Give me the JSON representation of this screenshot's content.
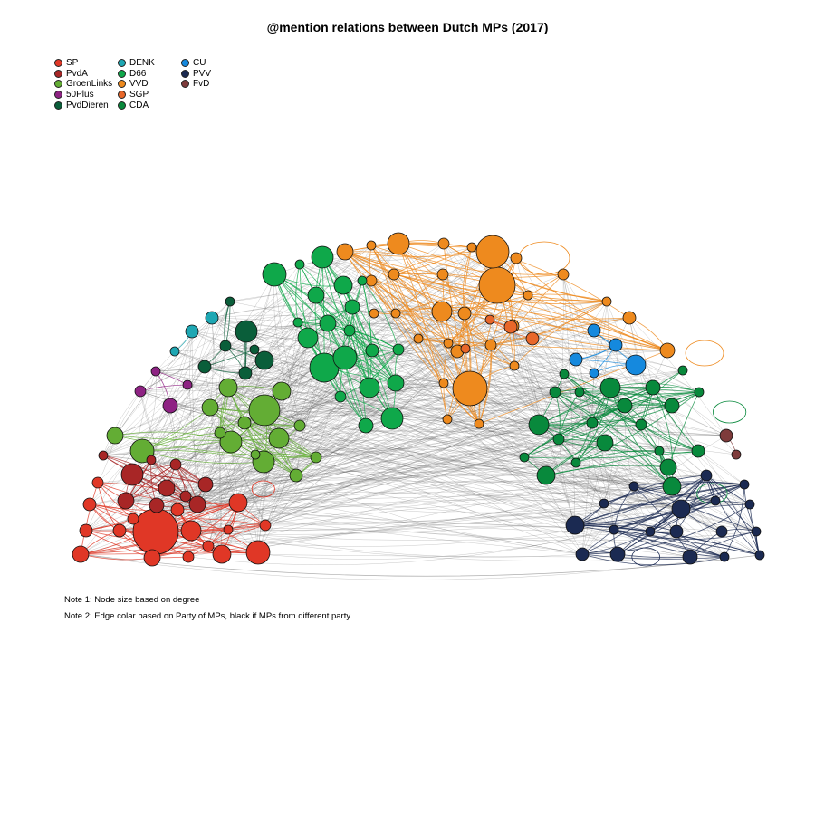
{
  "title": "@mention relations between Dutch MPs (2017)",
  "legend": {
    "columns": [
      [
        {
          "label": "SP",
          "color": "#E03726"
        },
        {
          "label": "PvdA",
          "color": "#A82626"
        },
        {
          "label": "GroenLinks",
          "color": "#63AD34"
        },
        {
          "label": "50Plus",
          "color": "#8E2283"
        },
        {
          "label": "PvdDieren",
          "color": "#0A5E3A"
        }
      ],
      [
        {
          "label": "DENK",
          "color": "#1EA7B3"
        },
        {
          "label": "D66",
          "color": "#0FA84A"
        },
        {
          "label": "VVD",
          "color": "#EE8A1E"
        },
        {
          "label": "SGP",
          "color": "#E8672A"
        },
        {
          "label": "CDA",
          "color": "#08893C"
        }
      ],
      [
        {
          "label": "CU",
          "color": "#1589DE"
        },
        {
          "label": "PVV",
          "color": "#1B2A52"
        },
        {
          "label": "FvD",
          "color": "#7E3B3B"
        }
      ]
    ]
  },
  "notes": {
    "note1": "Note 1: Node size based on degree",
    "note2": "Note 2: Edge colar based on Party of MPs, black if MPs from different party"
  }
}
